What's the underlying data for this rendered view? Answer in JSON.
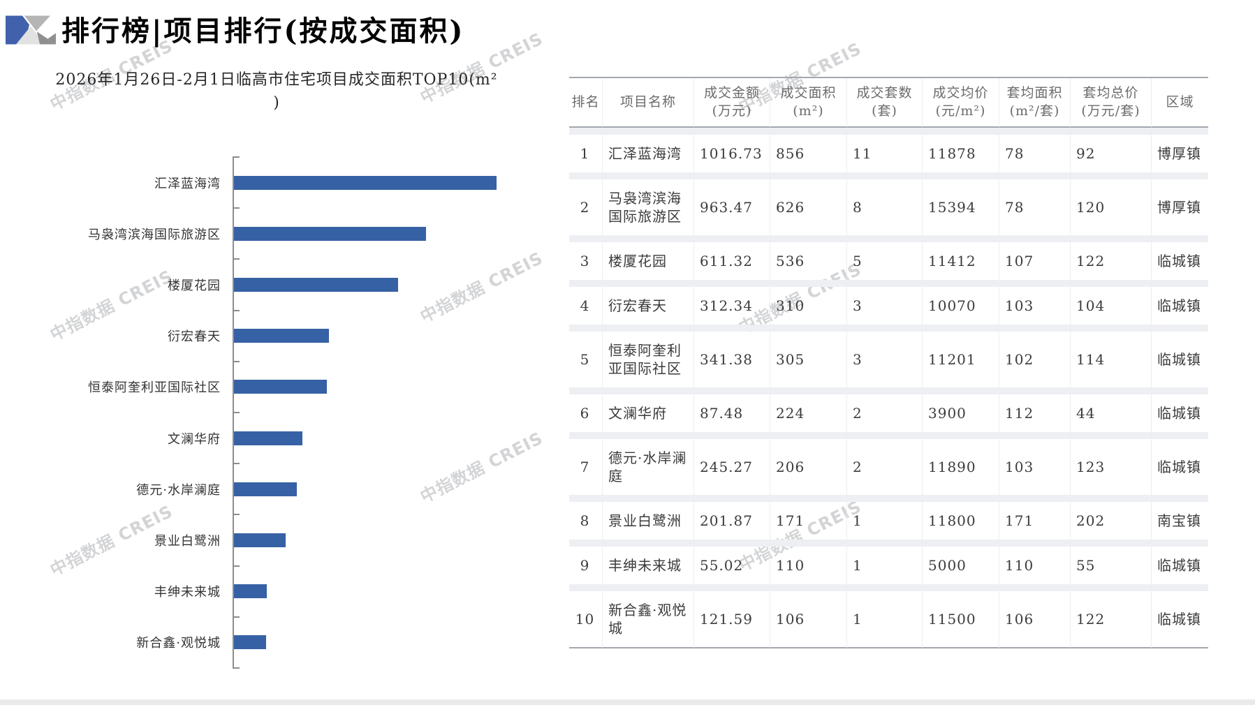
{
  "page": {
    "title": "排行榜|项目排行(按成交面积)",
    "watermark": "中指数据 CREIS"
  },
  "chart_data": {
    "type": "bar",
    "orientation": "horizontal",
    "title": "2026年1月26日-2月1日临高市住宅项目成交面积TOP10(m²)",
    "title_line1": "2026年1月26日-2月1日临高市住宅项目成交面积TOP10(m²",
    "title_line2": ")",
    "categories": [
      "汇泽蓝海湾",
      "马袅湾滨海国际旅游区",
      "楼厦花园",
      "衍宏春天",
      "恒泰阿奎利亚国际社区",
      "文澜华府",
      "德元·水岸澜庭",
      "景业白鹭洲",
      "丰绅未来城",
      "新合鑫·观悦城"
    ],
    "values": [
      856,
      626,
      536,
      310,
      305,
      224,
      206,
      171,
      110,
      106
    ],
    "xlabel": "",
    "ylabel": "",
    "xlim": [
      0,
      880
    ],
    "grid": false,
    "legend": false,
    "bar_color": "#3661a4",
    "axis_color": "#8c8c8c"
  },
  "table": {
    "headers": [
      {
        "label": "排名",
        "unit": ""
      },
      {
        "label": "项目名称",
        "unit": ""
      },
      {
        "label": "成交金额",
        "unit": "(万元)"
      },
      {
        "label": "成交面积",
        "unit": "(m²)"
      },
      {
        "label": "成交套数",
        "unit": "(套)"
      },
      {
        "label": "成交均价",
        "unit": "(元/m²)"
      },
      {
        "label": "套均面积",
        "unit": "(m²/套)"
      },
      {
        "label": "套均总价",
        "unit": "(万元/套)"
      },
      {
        "label": "区域",
        "unit": ""
      }
    ],
    "rows": [
      [
        "1",
        "汇泽蓝海湾",
        "1016.73",
        "856",
        "11",
        "11878",
        "78",
        "92",
        "博厚镇"
      ],
      [
        "2",
        "马袅湾滨海国际旅游区",
        "963.47",
        "626",
        "8",
        "15394",
        "78",
        "120",
        "博厚镇"
      ],
      [
        "3",
        "楼厦花园",
        "611.32",
        "536",
        "5",
        "11412",
        "107",
        "122",
        "临城镇"
      ],
      [
        "4",
        "衍宏春天",
        "312.34",
        "310",
        "3",
        "10070",
        "103",
        "104",
        "临城镇"
      ],
      [
        "5",
        "恒泰阿奎利亚国际社区",
        "341.38",
        "305",
        "3",
        "11201",
        "102",
        "114",
        "临城镇"
      ],
      [
        "6",
        "文澜华府",
        "87.48",
        "224",
        "2",
        "3900",
        "112",
        "44",
        "临城镇"
      ],
      [
        "7",
        "德元·水岸澜庭",
        "245.27",
        "206",
        "2",
        "11890",
        "103",
        "123",
        "临城镇"
      ],
      [
        "8",
        "景业白鹭洲",
        "201.87",
        "171",
        "1",
        "11800",
        "171",
        "202",
        "南宝镇"
      ],
      [
        "9",
        "丰绅未来城",
        "55.02",
        "110",
        "1",
        "5000",
        "110",
        "55",
        "临城镇"
      ],
      [
        "10",
        "新合鑫·观悦城",
        "121.59",
        "106",
        "1",
        "11500",
        "106",
        "122",
        "临城镇"
      ]
    ]
  },
  "colors": {
    "bar": "#3661a4",
    "logo_blue": "#4161ac",
    "logo_gray_light": "#e2e2e2",
    "logo_gray_mid": "#b5b5b5",
    "logo_gray_dark": "#8f8f8f",
    "table_rule": "#a3a7ae",
    "row_strip": "#edeff3"
  }
}
